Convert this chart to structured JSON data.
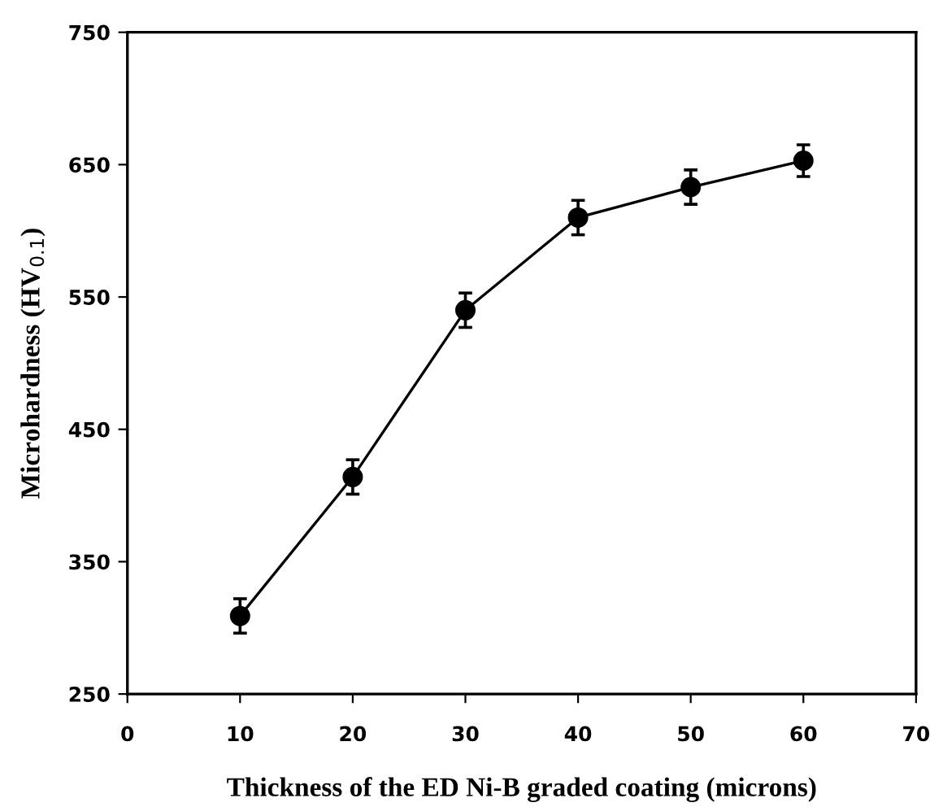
{
  "chart_data": {
    "type": "line",
    "xlabel": "Thickness of the ED Ni-B graded coating (microns)",
    "ylabel": "Microhardness (HV$_{0.1}$)",
    "x": [
      10,
      20,
      30,
      40,
      50,
      60
    ],
    "series": [
      {
        "color": "#000000",
        "values": [
          309,
          414,
          540,
          610,
          633,
          653
        ],
        "errors": [
          13,
          13,
          13,
          13,
          13,
          12
        ]
      }
    ],
    "xlim": [
      0,
      70
    ],
    "xticks": [
      0,
      10,
      20,
      30,
      40,
      50,
      60,
      70
    ],
    "ylim": [
      250,
      750
    ],
    "yticks": [
      250,
      350,
      450,
      550,
      650,
      750
    ],
    "grid": false,
    "legend": false,
    "marker": "circle",
    "line_style": "solid"
  }
}
